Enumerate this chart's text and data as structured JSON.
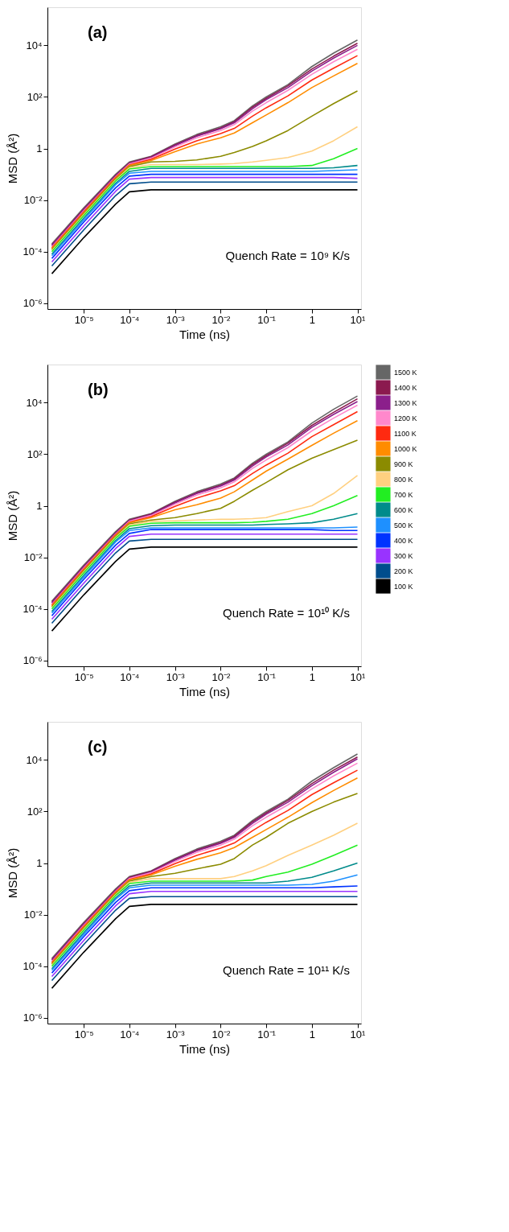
{
  "chart_data": [
    {
      "type": "line",
      "xlabel": "Time (ns)",
      "ylabel": "MSD (Å²)",
      "annotations": [
        "(a)",
        "Quench Rate = 10⁹ K/s"
      ],
      "log": "xy",
      "grid": false,
      "marker": "none",
      "line_style": "solid",
      "xlim": [
        1.6e-06,
        12
      ],
      "ylim": [
        6e-07,
        300000.0
      ],
      "xticks": [
        {
          "value": 1e-05,
          "label": "10⁻⁵"
        },
        {
          "value": 0.0001,
          "label": "10⁻⁴"
        },
        {
          "value": 0.001,
          "label": "10⁻³"
        },
        {
          "value": 0.01,
          "label": "10⁻²"
        },
        {
          "value": 0.1,
          "label": "10⁻¹"
        },
        1,
        {
          "value": 10,
          "label": "10¹"
        }
      ],
      "yticks": [
        {
          "value": 1e-06,
          "label": "10⁻⁶"
        },
        {
          "value": 0.0001,
          "label": "10⁻⁴"
        },
        {
          "value": 0.01,
          "label": "10⁻²"
        },
        1,
        {
          "value": 100,
          "label": "10²"
        },
        {
          "value": 10000,
          "label": "10⁴"
        }
      ],
      "x": [
        2e-06,
        1e-05,
        5e-05,
        0.0001,
        0.0003,
        0.001,
        0.003,
        0.01,
        0.02,
        0.05,
        0.1,
        0.3,
        1,
        3,
        10
      ],
      "series": [
        {
          "color": "#666666",
          "values": [
            0.0002,
            0.005,
            0.1,
            0.3,
            0.5,
            1.5,
            3.5,
            7,
            12,
            45,
            100,
            300,
            1500,
            5000,
            16000
          ]
        },
        {
          "color": "#8b1a4f",
          "values": [
            0.00018,
            0.0045,
            0.09,
            0.28,
            0.48,
            1.4,
            3.2,
            6.3,
            11,
            40,
            88,
            270,
            1200,
            3800,
            12000
          ]
        },
        {
          "color": "#8b1f8b",
          "values": [
            0.00017,
            0.0042,
            0.085,
            0.26,
            0.45,
            1.3,
            3,
            5.8,
            10,
            35,
            78,
            230,
            1000,
            3200,
            10000
          ]
        },
        {
          "color": "#ff88cc",
          "values": [
            0.00015,
            0.0038,
            0.08,
            0.25,
            0.42,
            1.15,
            2.6,
            5,
            8.5,
            28,
            60,
            180,
            750,
            2300,
            7000
          ]
        },
        {
          "color": "#ff2a10",
          "values": [
            0.00014,
            0.0035,
            0.075,
            0.23,
            0.38,
            0.95,
            2,
            3.8,
            6,
            18,
            38,
            110,
            450,
            1300,
            4000
          ]
        },
        {
          "color": "#ff8c00",
          "values": [
            0.00013,
            0.0032,
            0.07,
            0.22,
            0.34,
            0.75,
            1.5,
            2.6,
            4,
            10,
            20,
            60,
            230,
            650,
            2000
          ]
        },
        {
          "color": "#8b8b00",
          "values": [
            0.00012,
            0.003,
            0.065,
            0.2,
            0.3,
            0.32,
            0.36,
            0.5,
            0.7,
            1.2,
            2,
            5,
            18,
            55,
            170
          ]
        },
        {
          "color": "#ffd080",
          "values": [
            0.00011,
            0.0027,
            0.06,
            0.18,
            0.24,
            0.24,
            0.24,
            0.25,
            0.26,
            0.3,
            0.35,
            0.45,
            0.8,
            2,
            7
          ]
        },
        {
          "color": "#22ee22",
          "values": [
            0.0001,
            0.0025,
            0.055,
            0.16,
            0.2,
            0.2,
            0.2,
            0.2,
            0.2,
            0.2,
            0.2,
            0.2,
            0.22,
            0.4,
            1
          ]
        },
        {
          "color": "#008b8b",
          "values": [
            8e-05,
            0.002,
            0.045,
            0.13,
            0.17,
            0.17,
            0.17,
            0.17,
            0.17,
            0.17,
            0.17,
            0.17,
            0.17,
            0.18,
            0.22
          ]
        },
        {
          "color": "#1e90ff",
          "values": [
            7e-05,
            0.0017,
            0.04,
            0.11,
            0.13,
            0.13,
            0.13,
            0.13,
            0.13,
            0.13,
            0.13,
            0.13,
            0.13,
            0.14,
            0.15
          ]
        },
        {
          "color": "#0033ff",
          "values": [
            5.5e-05,
            0.0014,
            0.03,
            0.085,
            0.1,
            0.1,
            0.1,
            0.1,
            0.1,
            0.1,
            0.1,
            0.1,
            0.1,
            0.1,
            0.1
          ]
        },
        {
          "color": "#9933ff",
          "values": [
            4e-05,
            0.001,
            0.022,
            0.065,
            0.075,
            0.075,
            0.075,
            0.075,
            0.075,
            0.075,
            0.075,
            0.075,
            0.075,
            0.075,
            0.07
          ]
        },
        {
          "color": "#004d8c",
          "values": [
            2.8e-05,
            0.0007,
            0.015,
            0.043,
            0.05,
            0.05,
            0.05,
            0.05,
            0.05,
            0.05,
            0.05,
            0.05,
            0.05,
            0.05,
            0.05
          ]
        },
        {
          "color": "#000000",
          "values": [
            1.4e-05,
            0.00035,
            0.007,
            0.021,
            0.025,
            0.025,
            0.025,
            0.025,
            0.025,
            0.025,
            0.025,
            0.025,
            0.025,
            0.025,
            0.025
          ]
        }
      ]
    },
    {
      "type": "line",
      "xlabel": "Time (ns)",
      "ylabel": "MSD (Å²)",
      "annotations": [
        "(b)",
        "Quench Rate = 10¹⁰ K/s"
      ],
      "log": "xy",
      "grid": false,
      "legend": "right",
      "marker": "none",
      "line_style": "solid",
      "xlim": [
        1.6e-06,
        12
      ],
      "ylim": [
        6e-07,
        300000.0
      ],
      "xticks": [
        {
          "value": 1e-05,
          "label": "10⁻⁵"
        },
        {
          "value": 0.0001,
          "label": "10⁻⁴"
        },
        {
          "value": 0.001,
          "label": "10⁻³"
        },
        {
          "value": 0.01,
          "label": "10⁻²"
        },
        {
          "value": 0.1,
          "label": "10⁻¹"
        },
        1,
        {
          "value": 10,
          "label": "10¹"
        }
      ],
      "yticks": [
        {
          "value": 1e-06,
          "label": "10⁻⁶"
        },
        {
          "value": 0.0001,
          "label": "10⁻⁴"
        },
        {
          "value": 0.01,
          "label": "10⁻²"
        },
        1,
        {
          "value": 100,
          "label": "10²"
        },
        {
          "value": 10000,
          "label": "10⁴"
        }
      ],
      "x": [
        2e-06,
        1e-05,
        5e-05,
        0.0001,
        0.0003,
        0.001,
        0.003,
        0.01,
        0.02,
        0.05,
        0.1,
        0.3,
        1,
        3,
        10
      ],
      "series": [
        {
          "name": "1500 K",
          "color": "#666666",
          "values": [
            0.0002,
            0.005,
            0.1,
            0.3,
            0.5,
            1.5,
            3.5,
            7,
            12,
            45,
            100,
            300,
            1600,
            5500,
            18000
          ]
        },
        {
          "name": "1400 K",
          "color": "#8b1a4f",
          "values": [
            0.00018,
            0.0045,
            0.09,
            0.28,
            0.48,
            1.4,
            3.2,
            6.3,
            11,
            40,
            88,
            270,
            1300,
            4200,
            14000
          ]
        },
        {
          "name": "1300 K",
          "color": "#8b1f8b",
          "values": [
            0.00017,
            0.0042,
            0.085,
            0.26,
            0.45,
            1.3,
            3,
            5.8,
            10,
            35,
            78,
            230,
            1100,
            3500,
            11000
          ]
        },
        {
          "name": "1200 K",
          "color": "#ff88cc",
          "values": [
            0.00015,
            0.0038,
            0.08,
            0.25,
            0.42,
            1.15,
            2.6,
            5,
            8.5,
            28,
            60,
            180,
            800,
            2500,
            8000
          ]
        },
        {
          "name": "1100 K",
          "color": "#ff2a10",
          "values": [
            0.00014,
            0.0035,
            0.075,
            0.23,
            0.38,
            0.95,
            2,
            3.8,
            6,
            18,
            38,
            110,
            480,
            1400,
            4500
          ]
        },
        {
          "name": "1000 K",
          "color": "#ff8c00",
          "values": [
            0.00013,
            0.0032,
            0.07,
            0.22,
            0.35,
            0.7,
            1.1,
            2,
            3.5,
            10,
            22,
            65,
            220,
            650,
            2000
          ]
        },
        {
          "name": "900 K",
          "color": "#8b8b00",
          "values": [
            0.00012,
            0.003,
            0.065,
            0.2,
            0.28,
            0.35,
            0.5,
            0.8,
            1.5,
            4,
            8,
            25,
            70,
            150,
            350
          ]
        },
        {
          "name": "800 K",
          "color": "#ffd080",
          "values": [
            0.00011,
            0.0027,
            0.06,
            0.18,
            0.25,
            0.26,
            0.28,
            0.3,
            0.3,
            0.32,
            0.35,
            0.6,
            1,
            3,
            15
          ]
        },
        {
          "name": "700 K",
          "color": "#22ee22",
          "values": [
            0.0001,
            0.0025,
            0.055,
            0.16,
            0.21,
            0.22,
            0.22,
            0.22,
            0.22,
            0.23,
            0.25,
            0.3,
            0.5,
            1,
            2.5
          ]
        },
        {
          "name": "600 K",
          "color": "#008b8b",
          "values": [
            8e-05,
            0.002,
            0.045,
            0.13,
            0.17,
            0.18,
            0.18,
            0.18,
            0.18,
            0.18,
            0.19,
            0.2,
            0.22,
            0.3,
            0.5
          ]
        },
        {
          "name": "500 K",
          "color": "#1e90ff",
          "values": [
            7e-05,
            0.0017,
            0.04,
            0.11,
            0.14,
            0.14,
            0.14,
            0.14,
            0.14,
            0.14,
            0.14,
            0.14,
            0.14,
            0.14,
            0.15
          ]
        },
        {
          "name": "400 K",
          "color": "#0033ff",
          "values": [
            5.5e-05,
            0.0014,
            0.03,
            0.085,
            0.12,
            0.12,
            0.12,
            0.12,
            0.12,
            0.12,
            0.12,
            0.12,
            0.12,
            0.11,
            0.11
          ]
        },
        {
          "name": "300 K",
          "color": "#9933ff",
          "values": [
            4e-05,
            0.001,
            0.022,
            0.065,
            0.08,
            0.08,
            0.08,
            0.08,
            0.08,
            0.08,
            0.08,
            0.08,
            0.08,
            0.08,
            0.08
          ]
        },
        {
          "name": "200 K",
          "color": "#004d8c",
          "values": [
            2.8e-05,
            0.0007,
            0.015,
            0.043,
            0.05,
            0.05,
            0.05,
            0.05,
            0.05,
            0.05,
            0.05,
            0.05,
            0.05,
            0.05,
            0.05
          ]
        },
        {
          "name": "100 K",
          "color": "#000000",
          "values": [
            1.4e-05,
            0.00035,
            0.007,
            0.021,
            0.025,
            0.025,
            0.025,
            0.025,
            0.025,
            0.025,
            0.025,
            0.025,
            0.025,
            0.025,
            0.025
          ]
        }
      ]
    },
    {
      "type": "line",
      "xlabel": "Time (ns)",
      "ylabel": "MSD (Å²)",
      "annotations": [
        "(c)",
        "Quench Rate = 10¹¹ K/s"
      ],
      "log": "xy",
      "grid": false,
      "marker": "none",
      "line_style": "solid",
      "xlim": [
        1.6e-06,
        12
      ],
      "ylim": [
        6e-07,
        300000.0
      ],
      "xticks": [
        {
          "value": 1e-05,
          "label": "10⁻⁵"
        },
        {
          "value": 0.0001,
          "label": "10⁻⁴"
        },
        {
          "value": 0.001,
          "label": "10⁻³"
        },
        {
          "value": 0.01,
          "label": "10⁻²"
        },
        {
          "value": 0.1,
          "label": "10⁻¹"
        },
        1,
        {
          "value": 10,
          "label": "10¹"
        }
      ],
      "yticks": [
        {
          "value": 1e-06,
          "label": "10⁻⁶"
        },
        {
          "value": 0.0001,
          "label": "10⁻⁴"
        },
        {
          "value": 0.01,
          "label": "10⁻²"
        },
        1,
        {
          "value": 100,
          "label": "10²"
        },
        {
          "value": 10000,
          "label": "10⁴"
        }
      ],
      "x": [
        2e-06,
        1e-05,
        5e-05,
        0.0001,
        0.0003,
        0.001,
        0.003,
        0.01,
        0.02,
        0.05,
        0.1,
        0.3,
        1,
        3,
        10
      ],
      "series": [
        {
          "color": "#666666",
          "values": [
            0.0002,
            0.005,
            0.1,
            0.3,
            0.5,
            1.5,
            3.5,
            7,
            12,
            45,
            100,
            300,
            1500,
            5000,
            17000
          ]
        },
        {
          "color": "#8b1a4f",
          "values": [
            0.00018,
            0.0045,
            0.09,
            0.28,
            0.48,
            1.4,
            3.2,
            6.3,
            11,
            40,
            88,
            270,
            1200,
            4000,
            13000
          ]
        },
        {
          "color": "#8b1f8b",
          "values": [
            0.00017,
            0.0042,
            0.085,
            0.26,
            0.45,
            1.3,
            3,
            5.8,
            10,
            35,
            78,
            230,
            1000,
            3300,
            11000
          ]
        },
        {
          "color": "#ff88cc",
          "values": [
            0.00015,
            0.0038,
            0.08,
            0.25,
            0.42,
            1.15,
            2.6,
            5,
            8.5,
            28,
            60,
            180,
            750,
            2400,
            7500
          ]
        },
        {
          "color": "#ff2a10",
          "values": [
            0.00014,
            0.0035,
            0.075,
            0.23,
            0.38,
            0.95,
            2,
            3.8,
            6,
            18,
            38,
            110,
            450,
            1300,
            4000
          ]
        },
        {
          "color": "#ff8c00",
          "values": [
            0.00013,
            0.0032,
            0.07,
            0.22,
            0.35,
            0.75,
            1.4,
            2.5,
            4,
            10,
            20,
            60,
            220,
            650,
            2000
          ]
        },
        {
          "color": "#8b8b00",
          "values": [
            0.00012,
            0.003,
            0.065,
            0.2,
            0.3,
            0.4,
            0.6,
            0.9,
            1.5,
            5,
            10,
            35,
            100,
            230,
            500
          ]
        },
        {
          "color": "#ffd080",
          "values": [
            0.00011,
            0.0027,
            0.06,
            0.18,
            0.25,
            0.25,
            0.25,
            0.25,
            0.3,
            0.5,
            0.8,
            2,
            5,
            12,
            35
          ]
        },
        {
          "color": "#22ee22",
          "values": [
            0.0001,
            0.0025,
            0.055,
            0.16,
            0.2,
            0.2,
            0.2,
            0.2,
            0.2,
            0.22,
            0.3,
            0.45,
            0.9,
            2,
            5
          ]
        },
        {
          "color": "#008b8b",
          "values": [
            8e-05,
            0.002,
            0.045,
            0.13,
            0.17,
            0.17,
            0.17,
            0.17,
            0.17,
            0.17,
            0.17,
            0.2,
            0.28,
            0.5,
            1
          ]
        },
        {
          "color": "#1e90ff",
          "values": [
            7e-05,
            0.0017,
            0.04,
            0.11,
            0.14,
            0.14,
            0.14,
            0.14,
            0.14,
            0.14,
            0.14,
            0.14,
            0.15,
            0.2,
            0.35
          ]
        },
        {
          "color": "#0033ff",
          "values": [
            5.5e-05,
            0.0014,
            0.03,
            0.085,
            0.11,
            0.11,
            0.11,
            0.11,
            0.11,
            0.11,
            0.11,
            0.11,
            0.11,
            0.12,
            0.13
          ]
        },
        {
          "color": "#9933ff",
          "values": [
            4e-05,
            0.001,
            0.022,
            0.065,
            0.08,
            0.08,
            0.08,
            0.08,
            0.08,
            0.08,
            0.08,
            0.08,
            0.08,
            0.08,
            0.08
          ]
        },
        {
          "color": "#004d8c",
          "values": [
            2.8e-05,
            0.0007,
            0.015,
            0.043,
            0.05,
            0.05,
            0.05,
            0.05,
            0.05,
            0.05,
            0.05,
            0.05,
            0.05,
            0.05,
            0.05
          ]
        },
        {
          "color": "#000000",
          "values": [
            1.4e-05,
            0.00035,
            0.007,
            0.021,
            0.025,
            0.025,
            0.025,
            0.025,
            0.025,
            0.025,
            0.025,
            0.025,
            0.025,
            0.025,
            0.025
          ]
        }
      ]
    }
  ]
}
